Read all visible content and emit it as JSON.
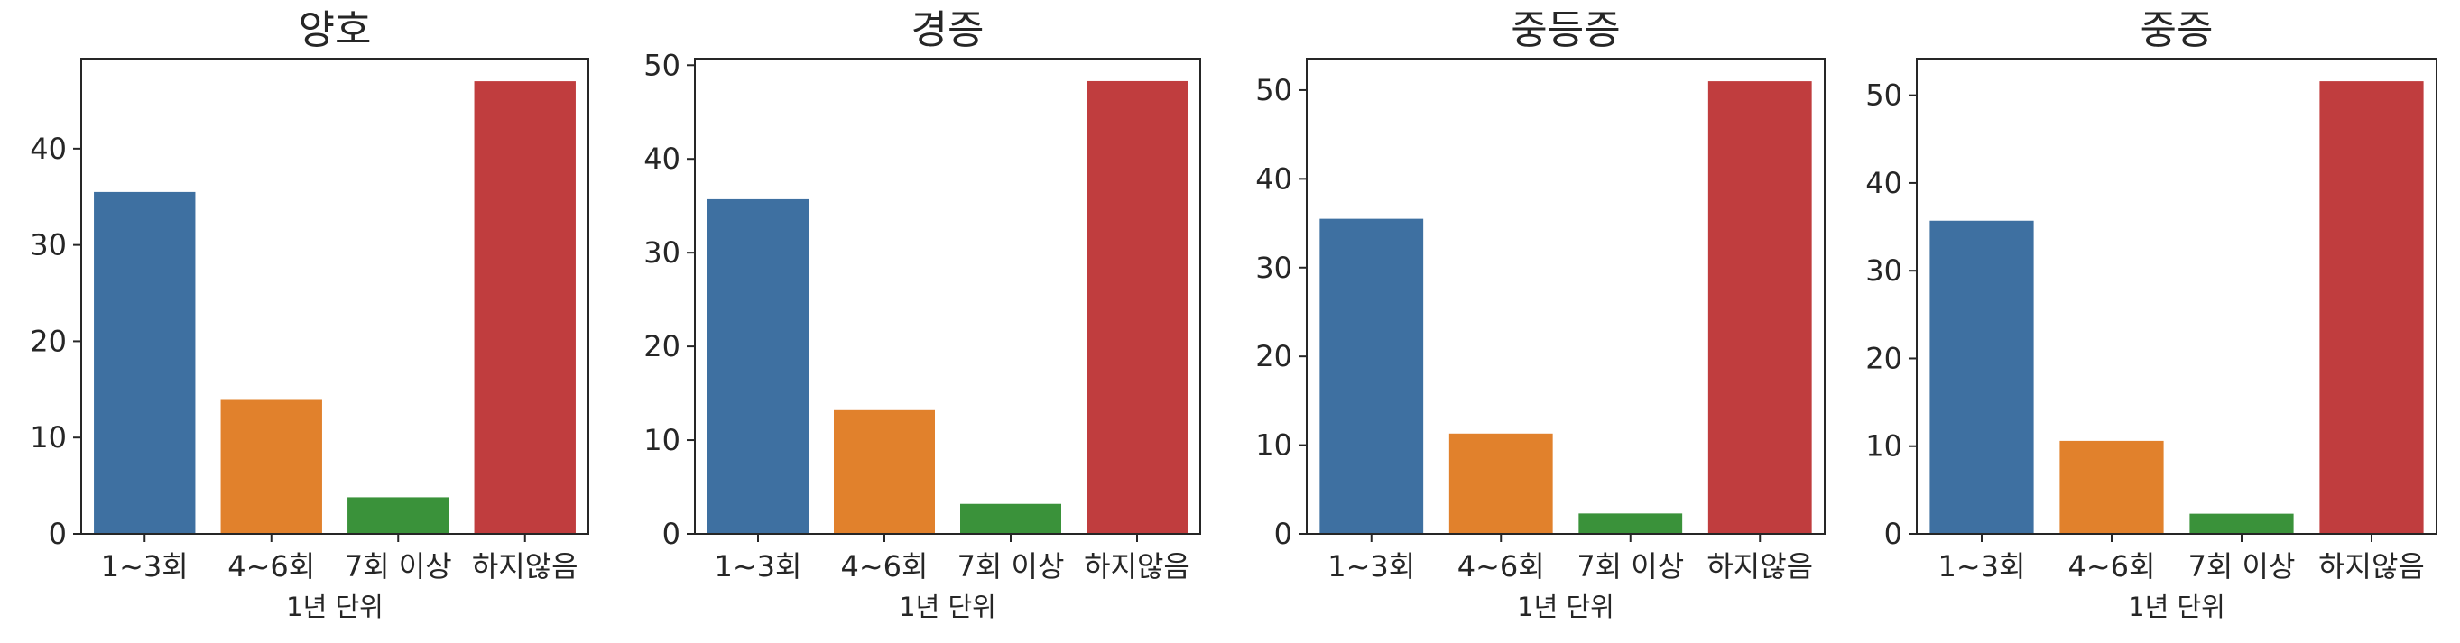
{
  "chart_data": [
    {
      "type": "bar",
      "title": "양호",
      "xlabel": "1년 단위",
      "ylabel": "",
      "categories": [
        "1~3회",
        "4~6회",
        "7회 이상",
        "하지않음"
      ],
      "values": [
        35.5,
        14.0,
        3.8,
        47.0
      ],
      "colors": [
        "#3e70a1",
        "#e1812c",
        "#3a923a",
        "#c03d3e"
      ],
      "yticks": [
        0,
        10,
        20,
        30,
        40
      ],
      "ylim": [
        0,
        49.35
      ],
      "grid": false
    },
    {
      "type": "bar",
      "title": "경증",
      "xlabel": "1년 단위",
      "ylabel": "",
      "categories": [
        "1~3회",
        "4~6회",
        "7회 이상",
        "하지않음"
      ],
      "values": [
        35.7,
        13.2,
        3.2,
        48.3
      ],
      "colors": [
        "#3e70a1",
        "#e1812c",
        "#3a923a",
        "#c03d3e"
      ],
      "yticks": [
        0,
        10,
        20,
        30,
        40,
        50
      ],
      "ylim": [
        0,
        50.7
      ],
      "grid": false
    },
    {
      "type": "bar",
      "title": "중등증",
      "xlabel": "1년 단위",
      "ylabel": "",
      "categories": [
        "1~3회",
        "4~6회",
        "7회 이상",
        "하지않음"
      ],
      "values": [
        35.5,
        11.3,
        2.3,
        51.0
      ],
      "colors": [
        "#3e70a1",
        "#e1812c",
        "#3a923a",
        "#c03d3e"
      ],
      "yticks": [
        0,
        10,
        20,
        30,
        40,
        50
      ],
      "ylim": [
        0,
        53.55
      ],
      "grid": false
    },
    {
      "type": "bar",
      "title": "중증",
      "xlabel": "1년 단위",
      "ylabel": "",
      "categories": [
        "1~3회",
        "4~6회",
        "7회 이상",
        "하지않음"
      ],
      "values": [
        35.7,
        10.6,
        2.3,
        51.6
      ],
      "colors": [
        "#3e70a1",
        "#e1812c",
        "#3a923a",
        "#c03d3e"
      ],
      "yticks": [
        0,
        10,
        20,
        30,
        40,
        50
      ],
      "ylim": [
        0,
        54.18
      ],
      "grid": false
    }
  ]
}
